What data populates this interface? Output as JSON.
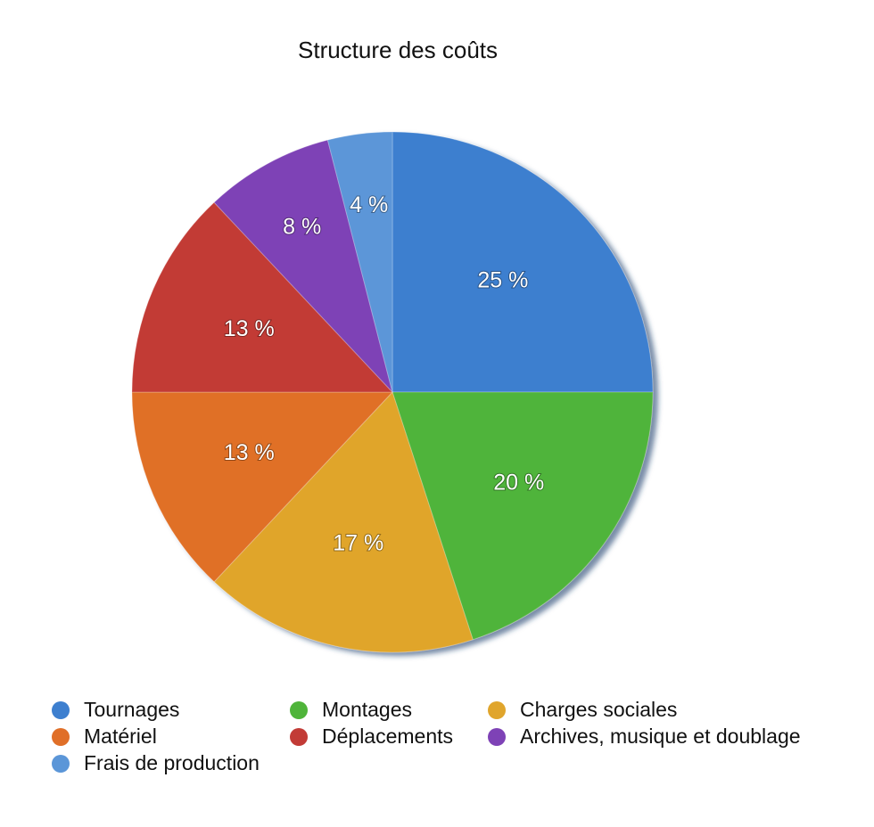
{
  "chart_data": {
    "type": "pie",
    "title": "Structure des coûts",
    "categories": [
      "Tournages",
      "Montages",
      "Charges sociales",
      "Matériel",
      "Déplacements",
      "Archives, musique et doublage",
      "Frais de production"
    ],
    "values": [
      25,
      20,
      17,
      13,
      13,
      8,
      4
    ],
    "value_labels": [
      "25 %",
      "20 %",
      "17 %",
      "13 %",
      "13 %",
      "8 %",
      "4 %"
    ],
    "colors": [
      "#3d7fcf",
      "#4fb43a",
      "#e0a52c",
      "#e06f28",
      "#c23b36",
      "#7e42b6",
      "#5b96d8"
    ]
  }
}
